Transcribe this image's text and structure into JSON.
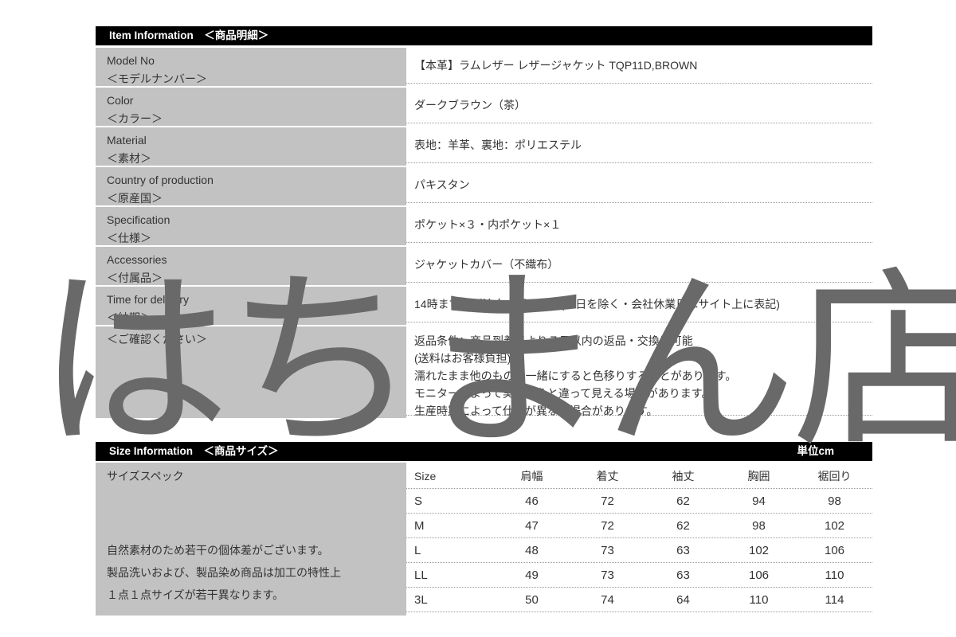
{
  "watermark": "はちまん店",
  "colors": {
    "header_bg": "#000000",
    "header_text": "#ffffff",
    "label_cell_bg": "#c2c2c2",
    "body_text": "#333333",
    "divider_dotted": "#9b9b9b",
    "watermark": "#696969"
  },
  "item_info": {
    "header_title": "Item Information　＜商品明細＞",
    "rows": [
      {
        "label_en": "Model No",
        "label_jp": "＜モデルナンバー＞",
        "value": "【本革】ラムレザー レザージャケット TQP11D,BROWN"
      },
      {
        "label_en": "Color",
        "label_jp": "＜カラー＞",
        "value": "ダークブラウン（茶）"
      },
      {
        "label_en": "Material",
        "label_jp": "＜素材＞",
        "value": "表地：羊革、裏地：ポリエステル"
      },
      {
        "label_en": "Country of production",
        "label_jp": "＜原産国＞",
        "value": "パキスタン"
      },
      {
        "label_en": "Specification",
        "label_jp": "＜仕様＞",
        "value": "ポケット×３・内ポケット×１"
      },
      {
        "label_en": "Accessories",
        "label_jp": "＜付属品＞",
        "value": "ジャケットカバー（不織布）"
      },
      {
        "label_en": "Time for delivery",
        "label_jp": "＜納期＞",
        "value": "14時までのご注文で即日発送(土日を除く・会社休業日はサイト上に表記)"
      }
    ],
    "notes_row": {
      "label_en": "",
      "label_jp": "＜ご確認ください＞",
      "lines": [
        "返品条件：商品到着日より７日以内の返品・交換は可能",
        "(送料はお客様負担)",
        "濡れたまま他のものと一緒にすると色移りすることがあります。",
        "モニターによって実物の色と違って見える場合があります。",
        "生産時期によって仕様が異なる場合があります。"
      ]
    }
  },
  "size_info": {
    "header_title": "Size Information　＜商品サイズ＞",
    "unit_label": "単位cm",
    "spec_title": "サイズスペック",
    "spec_notes": [
      "自然素材のため若干の個体差がございます。",
      "製品洗いおよび、製品染め商品は加工の特性上",
      "１点１点サイズが若干異なります。"
    ],
    "table": {
      "columns": [
        "Size",
        "肩幅",
        "着丈",
        "袖丈",
        "胸囲",
        "裾回り"
      ],
      "rows": [
        [
          "S",
          "46",
          "72",
          "62",
          "94",
          "98"
        ],
        [
          "M",
          "47",
          "72",
          "62",
          "98",
          "102"
        ],
        [
          "L",
          "48",
          "73",
          "63",
          "102",
          "106"
        ],
        [
          "LL",
          "49",
          "73",
          "63",
          "106",
          "110"
        ],
        [
          "3L",
          "50",
          "74",
          "64",
          "110",
          "114"
        ]
      ]
    }
  }
}
